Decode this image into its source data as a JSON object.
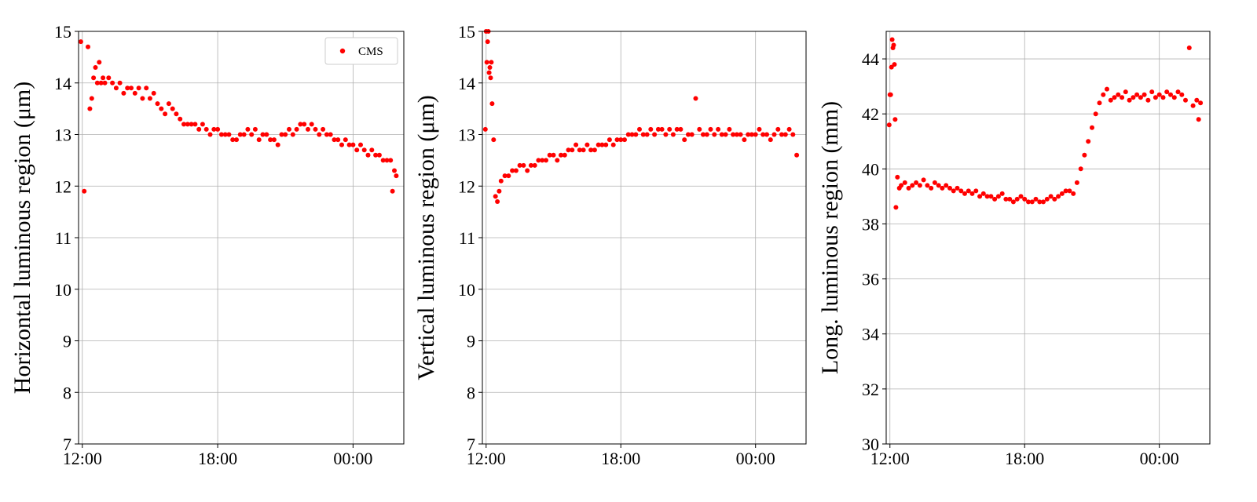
{
  "chart_data": [
    {
      "type": "scatter",
      "ylabel": "Horizontal luminous region (μm)",
      "ylim": [
        7,
        15
      ],
      "yticks": [
        7,
        8,
        9,
        10,
        11,
        12,
        13,
        14,
        15
      ],
      "xtick_labels": [
        "12:00",
        "18:00",
        "00:00"
      ],
      "grid": true,
      "legend": {
        "entries": [
          "CMS"
        ],
        "placement": "top-right"
      },
      "series": [
        {
          "name": "CMS",
          "color": "#ff0000",
          "x": [
            "11:56",
            "12:05",
            "12:15",
            "12:20",
            "12:25",
            "12:30",
            "12:35",
            "12:40",
            "12:45",
            "12:50",
            "12:55",
            "13:00",
            "13:10",
            "13:20",
            "13:30",
            "13:40",
            "13:50",
            "14:00",
            "14:10",
            "14:20",
            "14:30",
            "14:40",
            "14:50",
            "15:00",
            "15:10",
            "15:20",
            "15:30",
            "15:40",
            "15:50",
            "16:00",
            "16:10",
            "16:20",
            "16:30",
            "16:40",
            "16:50",
            "17:00",
            "17:10",
            "17:20",
            "17:30",
            "17:40",
            "17:50",
            "18:00",
            "18:10",
            "18:20",
            "18:30",
            "18:40",
            "18:50",
            "19:00",
            "19:10",
            "19:20",
            "19:30",
            "19:40",
            "19:50",
            "20:00",
            "20:10",
            "20:20",
            "20:30",
            "20:40",
            "20:50",
            "21:00",
            "21:10",
            "21:20",
            "21:30",
            "21:40",
            "21:50",
            "22:00",
            "22:10",
            "22:20",
            "22:30",
            "22:40",
            "22:50",
            "23:00",
            "23:10",
            "23:20",
            "23:30",
            "23:40",
            "23:50",
            "00:00",
            "00:10",
            "00:20",
            "00:30",
            "00:40",
            "00:50",
            "01:00",
            "01:10",
            "01:20",
            "01:30",
            "01:40",
            "01:45",
            "01:50",
            "01:55"
          ],
          "y": [
            14.8,
            11.9,
            14.7,
            13.5,
            13.7,
            14.1,
            14.3,
            14.0,
            14.4,
            14.0,
            14.1,
            14.0,
            14.1,
            14.0,
            13.9,
            14.0,
            13.8,
            13.9,
            13.9,
            13.8,
            13.9,
            13.7,
            13.9,
            13.7,
            13.8,
            13.6,
            13.5,
            13.4,
            13.6,
            13.5,
            13.4,
            13.3,
            13.2,
            13.2,
            13.2,
            13.2,
            13.1,
            13.2,
            13.1,
            13.0,
            13.1,
            13.1,
            13.0,
            13.0,
            13.0,
            12.9,
            12.9,
            13.0,
            13.0,
            13.1,
            13.0,
            13.1,
            12.9,
            13.0,
            13.0,
            12.9,
            12.9,
            12.8,
            13.0,
            13.0,
            13.1,
            13.0,
            13.1,
            13.2,
            13.2,
            13.1,
            13.2,
            13.1,
            13.0,
            13.1,
            13.0,
            13.0,
            12.9,
            12.9,
            12.8,
            12.9,
            12.8,
            12.8,
            12.7,
            12.8,
            12.7,
            12.6,
            12.7,
            12.6,
            12.6,
            12.5,
            12.5,
            12.5,
            11.9,
            12.3,
            12.2
          ]
        }
      ]
    },
    {
      "type": "scatter",
      "ylabel": "Vertical luminous region (μm)",
      "ylim": [
        7,
        15
      ],
      "yticks": [
        7,
        8,
        9,
        10,
        11,
        12,
        13,
        14,
        15
      ],
      "xtick_labels": [
        "12:00",
        "18:00",
        "00:00"
      ],
      "grid": true,
      "series": [
        {
          "name": "CMS",
          "color": "#ff0000",
          "x": [
            "11:58",
            "12:00",
            "12:02",
            "12:04",
            "12:06",
            "12:08",
            "12:10",
            "12:12",
            "12:14",
            "12:16",
            "12:20",
            "12:25",
            "12:30",
            "12:35",
            "12:40",
            "12:50",
            "13:00",
            "13:10",
            "13:20",
            "13:30",
            "13:40",
            "13:50",
            "14:00",
            "14:10",
            "14:20",
            "14:30",
            "14:40",
            "14:50",
            "15:00",
            "15:10",
            "15:20",
            "15:30",
            "15:40",
            "15:50",
            "16:00",
            "16:10",
            "16:20",
            "16:30",
            "16:40",
            "16:50",
            "17:00",
            "17:10",
            "17:20",
            "17:30",
            "17:40",
            "17:50",
            "18:00",
            "18:10",
            "18:20",
            "18:30",
            "18:40",
            "18:50",
            "19:00",
            "19:10",
            "19:20",
            "19:30",
            "19:40",
            "19:50",
            "20:00",
            "20:10",
            "20:20",
            "20:30",
            "20:40",
            "20:50",
            "21:00",
            "21:10",
            "21:20",
            "21:30",
            "21:40",
            "21:50",
            "22:00",
            "22:10",
            "22:20",
            "22:30",
            "22:40",
            "22:50",
            "23:00",
            "23:10",
            "23:20",
            "23:30",
            "23:40",
            "23:50",
            "00:00",
            "00:10",
            "00:20",
            "00:30",
            "00:40",
            "00:50",
            "01:00",
            "01:10",
            "01:20",
            "01:30",
            "01:40",
            "01:50"
          ],
          "y": [
            13.1,
            15.0,
            14.4,
            14.8,
            15.0,
            14.2,
            14.3,
            14.1,
            14.4,
            13.6,
            12.9,
            11.8,
            11.7,
            11.9,
            12.1,
            12.2,
            12.2,
            12.3,
            12.3,
            12.4,
            12.4,
            12.3,
            12.4,
            12.4,
            12.5,
            12.5,
            12.5,
            12.6,
            12.6,
            12.5,
            12.6,
            12.6,
            12.7,
            12.7,
            12.8,
            12.7,
            12.7,
            12.8,
            12.7,
            12.7,
            12.8,
            12.8,
            12.8,
            12.9,
            12.8,
            12.9,
            12.9,
            12.9,
            13.0,
            13.0,
            13.0,
            13.1,
            13.0,
            13.0,
            13.1,
            13.0,
            13.1,
            13.1,
            13.0,
            13.1,
            13.0,
            13.1,
            13.1,
            12.9,
            13.0,
            13.0,
            13.7,
            13.1,
            13.0,
            13.0,
            13.1,
            13.0,
            13.1,
            13.0,
            13.0,
            13.1,
            13.0,
            13.0,
            13.0,
            12.9,
            13.0,
            13.0,
            13.0,
            13.1,
            13.0,
            13.0,
            12.9,
            13.0,
            13.1,
            13.0,
            13.0,
            13.1,
            13.0,
            12.6
          ]
        }
      ]
    },
    {
      "type": "scatter",
      "ylabel": "Long. luminous region (mm)",
      "ylim": [
        30,
        45
      ],
      "yticks": [
        30,
        32,
        34,
        36,
        38,
        40,
        42,
        44
      ],
      "xtick_labels": [
        "12:00",
        "18:00",
        "00:00"
      ],
      "grid": true,
      "series": [
        {
          "name": "CMS",
          "color": "#ff0000",
          "x": [
            "11:58",
            "12:00",
            "12:02",
            "12:04",
            "12:06",
            "12:08",
            "12:10",
            "12:12",
            "12:14",
            "12:16",
            "12:20",
            "12:25",
            "12:30",
            "12:40",
            "12:50",
            "13:00",
            "13:10",
            "13:20",
            "13:30",
            "13:40",
            "13:50",
            "14:00",
            "14:10",
            "14:20",
            "14:30",
            "14:40",
            "14:50",
            "15:00",
            "15:10",
            "15:20",
            "15:30",
            "15:40",
            "15:50",
            "16:00",
            "16:10",
            "16:20",
            "16:30",
            "16:40",
            "16:50",
            "17:00",
            "17:10",
            "17:20",
            "17:30",
            "17:40",
            "17:50",
            "18:00",
            "18:10",
            "18:20",
            "18:30",
            "18:40",
            "18:50",
            "19:00",
            "19:10",
            "19:20",
            "19:30",
            "19:40",
            "19:50",
            "20:00",
            "20:10",
            "20:20",
            "20:30",
            "20:40",
            "20:50",
            "21:00",
            "21:10",
            "21:20",
            "21:30",
            "21:40",
            "21:50",
            "22:00",
            "22:10",
            "22:20",
            "22:30",
            "22:40",
            "22:50",
            "23:00",
            "23:10",
            "23:20",
            "23:30",
            "23:40",
            "23:50",
            "00:00",
            "00:10",
            "00:20",
            "00:30",
            "00:40",
            "00:50",
            "01:00",
            "01:10",
            "01:20",
            "01:30",
            "01:40",
            "01:45",
            "01:50"
          ],
          "y": [
            41.6,
            42.7,
            42.7,
            43.7,
            44.7,
            44.4,
            44.5,
            43.8,
            41.8,
            38.6,
            39.7,
            39.3,
            39.4,
            39.5,
            39.3,
            39.4,
            39.5,
            39.4,
            39.6,
            39.4,
            39.3,
            39.5,
            39.4,
            39.3,
            39.4,
            39.3,
            39.2,
            39.3,
            39.2,
            39.1,
            39.2,
            39.1,
            39.2,
            39.0,
            39.1,
            39.0,
            39.0,
            38.9,
            39.0,
            39.1,
            38.9,
            38.9,
            38.8,
            38.9,
            39.0,
            38.9,
            38.8,
            38.8,
            38.9,
            38.8,
            38.8,
            38.9,
            39.0,
            38.9,
            39.0,
            39.1,
            39.2,
            39.2,
            39.1,
            39.5,
            40.0,
            40.5,
            41.0,
            41.5,
            42.0,
            42.4,
            42.7,
            42.9,
            42.5,
            42.6,
            42.7,
            42.6,
            42.8,
            42.5,
            42.6,
            42.7,
            42.6,
            42.7,
            42.5,
            42.8,
            42.6,
            42.7,
            42.6,
            42.8,
            42.7,
            42.6,
            42.8,
            42.7,
            42.5,
            44.4,
            42.3,
            42.5,
            41.8,
            42.4
          ]
        }
      ]
    }
  ]
}
